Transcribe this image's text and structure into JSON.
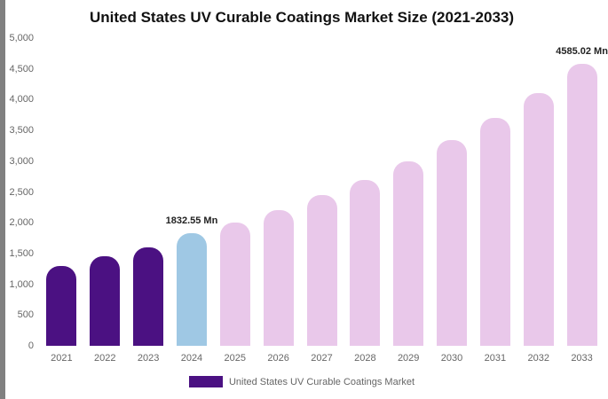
{
  "page": {
    "title": "United States UV Curable Coatings Market Size (2021-2033)"
  },
  "legend": {
    "label": "United States UV Curable Coatings Market",
    "swatch_color": "#4b1182"
  },
  "colors": {
    "historical_bar": "#4b1182",
    "current_bar": "#9fc8e4",
    "forecast_bar": "#e9c8ea"
  },
  "chart_data": {
    "type": "bar",
    "title": "United States UV Curable Coatings Market Size (2021-2033)",
    "xlabel": "",
    "ylabel": "",
    "ylim": [
      0,
      5000
    ],
    "ytick_step": 500,
    "ytick_labels": [
      "0",
      "500",
      "1,000",
      "1,500",
      "2,000",
      "2,500",
      "3,000",
      "3,500",
      "4,000",
      "4,500",
      "5,000"
    ],
    "grid": false,
    "legend_position": "bottom",
    "categories": [
      "2021",
      "2022",
      "2023",
      "2024",
      "2025",
      "2026",
      "2027",
      "2028",
      "2029",
      "2030",
      "2031",
      "2032",
      "2033"
    ],
    "values": [
      1300,
      1450,
      1600,
      1832.55,
      2000,
      2200,
      2450,
      2700,
      3000,
      3350,
      3700,
      4100,
      4585.02
    ],
    "bar_colors": [
      "#4b1182",
      "#4b1182",
      "#4b1182",
      "#9fc8e4",
      "#e9c8ea",
      "#e9c8ea",
      "#e9c8ea",
      "#e9c8ea",
      "#e9c8ea",
      "#e9c8ea",
      "#e9c8ea",
      "#e9c8ea",
      "#e9c8ea"
    ],
    "annotations": [
      {
        "index": 3,
        "text": "1832.55 Mn"
      },
      {
        "index": 12,
        "text": "4585.02 Mn"
      }
    ]
  }
}
